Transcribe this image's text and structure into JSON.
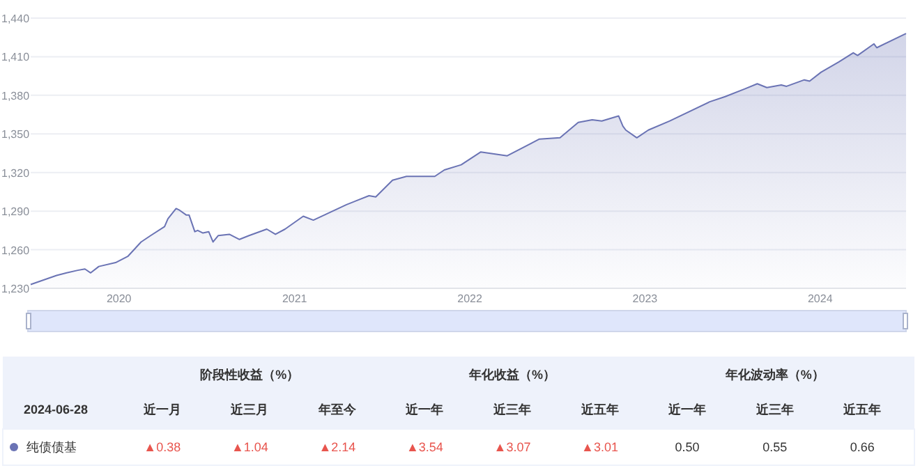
{
  "chart_data": {
    "type": "area",
    "x": [
      "2019-07-01",
      "2019-08-24",
      "2019-09-14",
      "2019-10-07",
      "2019-10-22",
      "2019-11-03",
      "2019-11-20",
      "2019-12-25",
      "2020-01-20",
      "2020-02-16",
      "2020-03-07",
      "2020-04-05",
      "2020-04-12",
      "2020-04-29",
      "2020-05-05",
      "2020-05-20",
      "2020-05-26",
      "2020-06-07",
      "2020-06-13",
      "2020-06-24",
      "2020-07-06",
      "2020-07-15",
      "2020-07-26",
      "2020-08-18",
      "2020-09-08",
      "2020-09-28",
      "2020-11-04",
      "2020-11-22",
      "2020-12-12",
      "2021-01-19",
      "2021-02-09",
      "2021-04-19",
      "2021-06-05",
      "2021-06-19",
      "2021-07-24",
      "2021-08-22",
      "2021-10-20",
      "2021-11-09",
      "2021-12-14",
      "2022-01-24",
      "2022-03-20",
      "2022-05-26",
      "2022-07-08",
      "2022-08-15",
      "2022-09-13",
      "2022-10-03",
      "2022-11-07",
      "2022-11-16",
      "2022-11-22",
      "2022-12-15",
      "2023-01-08",
      "2023-02-21",
      "2023-05-16",
      "2023-06-17",
      "2023-07-28",
      "2023-08-23",
      "2023-09-12",
      "2023-10-12",
      "2023-10-23",
      "2023-11-29",
      "2023-12-10",
      "2024-01-03",
      "2024-02-09",
      "2024-03-10",
      "2024-03-19",
      "2024-04-22",
      "2024-04-28",
      "2024-06-28"
    ],
    "series": [
      {
        "name": "纯债债基",
        "color": "#6a73b4",
        "values": [
          1233,
          1240,
          1242,
          1244,
          1245,
          1242,
          1247,
          1250,
          1255,
          1266,
          1271,
          1278,
          1284,
          1292,
          1291,
          1287,
          1287,
          1274,
          1275,
          1273,
          1274,
          1266,
          1271,
          1272,
          1268,
          1271,
          1276,
          1272,
          1276,
          1286,
          1283,
          1295,
          1302,
          1301,
          1314,
          1317,
          1317,
          1322,
          1326,
          1336,
          1333,
          1346,
          1347,
          1359,
          1361,
          1360,
          1364,
          1356,
          1353,
          1347,
          1353,
          1360,
          1375,
          1379,
          1385,
          1389,
          1386,
          1388,
          1387,
          1392,
          1391,
          1398,
          1406,
          1413,
          1411,
          1420,
          1417,
          1428
        ]
      }
    ],
    "xlim": [
      "2019-07-01",
      "2024-06-28"
    ],
    "xticks": [
      {
        "value": "2020-01-01",
        "label": "2020"
      },
      {
        "value": "2021-01-01",
        "label": "2021"
      },
      {
        "value": "2022-01-01",
        "label": "2022"
      },
      {
        "value": "2023-01-01",
        "label": "2023"
      },
      {
        "value": "2024-01-01",
        "label": "2024"
      }
    ],
    "ylim": [
      1230,
      1440
    ],
    "yticks": [
      {
        "value": 1230,
        "label": "1,230"
      },
      {
        "value": 1260,
        "label": "1,260"
      },
      {
        "value": 1290,
        "label": "1,290"
      },
      {
        "value": 1320,
        "label": "1,320"
      },
      {
        "value": 1350,
        "label": "1,350"
      },
      {
        "value": 1380,
        "label": "1,380"
      },
      {
        "value": 1410,
        "label": "1,410"
      },
      {
        "value": 1440,
        "label": "1,440"
      }
    ],
    "grid": "y",
    "annotations": [
      "阶段性收益（%）",
      "年化收益（%）",
      "年化波动率（%）",
      "2024-06-28",
      "近一月",
      "近三月",
      "年至今",
      "近一年",
      "近三年",
      "近五年",
      "近一年",
      "近三年",
      "近五年",
      "▲0.38",
      "▲1.04",
      "▲2.14",
      "▲3.54",
      "▲3.07",
      "▲3.01",
      "0.50",
      "0.55",
      "0.66"
    ]
  }
}
